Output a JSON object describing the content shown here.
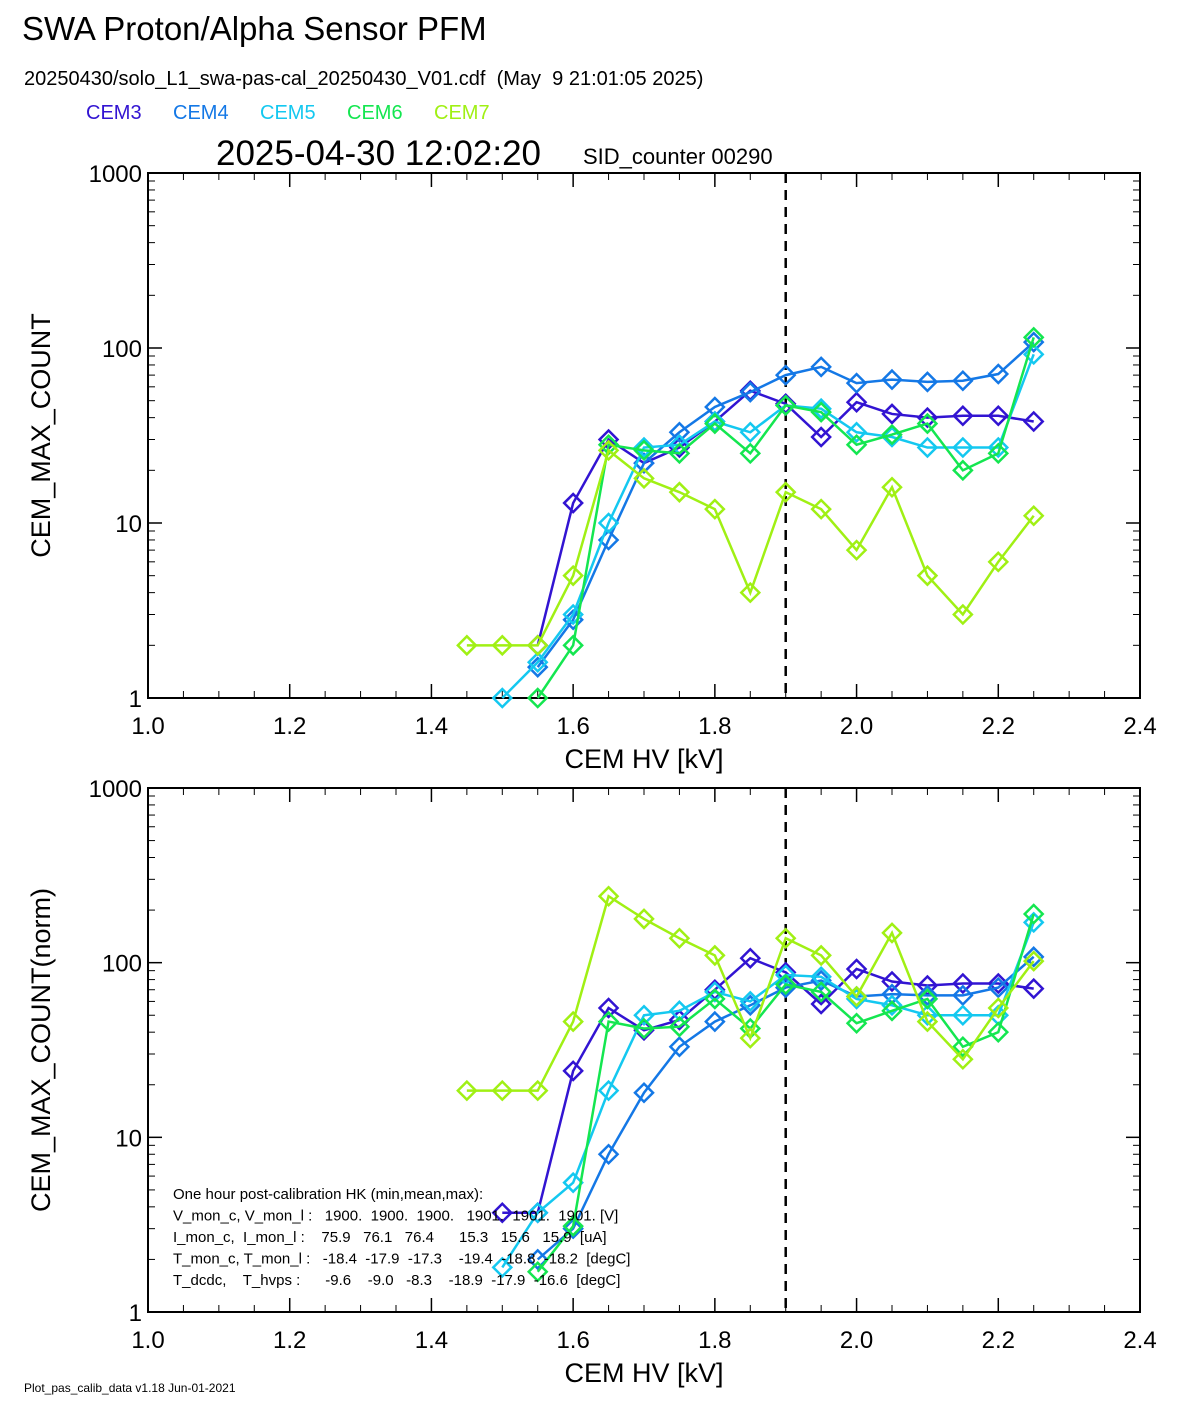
{
  "header": {
    "title": "SWA Proton/Alpha Sensor PFM",
    "subtitle": "20250430/solo_L1_swa-pas-cal_20250430_V01.cdf  (May  9 21:01:05 2025)",
    "timestamp": "2025-04-30 12:02:20",
    "sid": "SID_counter 00290",
    "footer": "Plot_pas_calib_data v1.18 Jun-01-2021"
  },
  "chart_data": [
    {
      "type": "line",
      "x_label": "CEM HV [kV]",
      "y_label": "CEM_MAX_COUNT",
      "log_y": true,
      "marker": "diamond",
      "vline": 1.9,
      "x": [
        1.45,
        1.5,
        1.55,
        1.6,
        1.65,
        1.7,
        1.75,
        1.8,
        1.85,
        1.9,
        1.95,
        2.0,
        2.05,
        2.1,
        2.15,
        2.2,
        2.25
      ],
      "xlim": [
        1.0,
        2.4
      ],
      "xticks": [
        {
          "value": 1.0,
          "label": "1.0"
        },
        {
          "value": 1.2,
          "label": "1.2"
        },
        {
          "value": 1.4,
          "label": "1.4"
        },
        {
          "value": 1.6,
          "label": "1.6"
        },
        {
          "value": 1.8,
          "label": "1.8"
        },
        {
          "value": 2.0,
          "label": "2.0"
        },
        {
          "value": 2.2,
          "label": "2.2"
        },
        {
          "value": 2.4,
          "label": "2.4"
        }
      ],
      "ylim": [
        1,
        1000
      ],
      "yticks": [
        1,
        10,
        100,
        1000
      ],
      "series": [
        {
          "name": "CEM3",
          "color": "#3214d2",
          "values": [
            null,
            null,
            2,
            13,
            30,
            22,
            27,
            38,
            57,
            48,
            31,
            49,
            42,
            40,
            41,
            41,
            38
          ]
        },
        {
          "name": "CEM4",
          "color": "#1478e6",
          "values": [
            null,
            null,
            1.5,
            2.8,
            8,
            22,
            33,
            46,
            56,
            70,
            78,
            63,
            66,
            64,
            65,
            71,
            108
          ]
        },
        {
          "name": "CEM5",
          "color": "#14c8f0",
          "values": [
            null,
            1,
            1.6,
            3,
            10,
            27,
            28,
            38,
            33,
            47,
            45,
            33,
            31,
            27,
            27,
            27,
            92
          ]
        },
        {
          "name": "CEM6",
          "color": "#14e650",
          "values": [
            null,
            null,
            1,
            2,
            28,
            26,
            25,
            37,
            25,
            47,
            43,
            28,
            32,
            37,
            20,
            25,
            115
          ]
        },
        {
          "name": "CEM7",
          "color": "#a0f014",
          "values": [
            2,
            2,
            2,
            5,
            26,
            18,
            15,
            12,
            4,
            15,
            12,
            7,
            16,
            5,
            3,
            6,
            11
          ]
        }
      ]
    },
    {
      "type": "line",
      "x_label": "CEM HV [kV]",
      "y_label": "CEM_MAX_COUNT(norm)",
      "log_y": true,
      "marker": "diamond",
      "vline": 1.9,
      "x": [
        1.45,
        1.5,
        1.55,
        1.6,
        1.65,
        1.7,
        1.75,
        1.8,
        1.85,
        1.9,
        1.95,
        2.0,
        2.05,
        2.1,
        2.15,
        2.2,
        2.25
      ],
      "xlim": [
        1.0,
        2.4
      ],
      "xticks": [
        {
          "value": 1.0,
          "label": "1.0"
        },
        {
          "value": 1.2,
          "label": "1.2"
        },
        {
          "value": 1.4,
          "label": "1.4"
        },
        {
          "value": 1.6,
          "label": "1.6"
        },
        {
          "value": 1.8,
          "label": "1.8"
        },
        {
          "value": 2.0,
          "label": "2.0"
        },
        {
          "value": 2.2,
          "label": "2.2"
        },
        {
          "value": 2.4,
          "label": "2.4"
        }
      ],
      "ylim": [
        1,
        1000
      ],
      "yticks": [
        1,
        10,
        100,
        1000
      ],
      "series": [
        {
          "color": "#3214d2",
          "values": [
            null,
            3.7,
            3.7,
            24,
            55,
            41,
            47,
            70,
            106,
            88,
            58,
            92,
            78,
            74,
            76,
            76,
            71
          ]
        },
        {
          "color": "#1478e6",
          "values": [
            null,
            null,
            2,
            3,
            8,
            18,
            33,
            46,
            57,
            72,
            79,
            64,
            66,
            65,
            65,
            72,
            108
          ]
        },
        {
          "color": "#14c8f0",
          "values": [
            null,
            1.8,
            3.7,
            5.5,
            18.5,
            50,
            53,
            68,
            60,
            85,
            83,
            62,
            57,
            50,
            50,
            50,
            170
          ]
        },
        {
          "color": "#14e650",
          "values": [
            null,
            null,
            1.7,
            3.1,
            46,
            42,
            43,
            62,
            42,
            75,
            68,
            45,
            53,
            62,
            33,
            40,
            190
          ]
        },
        {
          "color": "#a0f014",
          "values": [
            18.5,
            18.5,
            18.5,
            46,
            240,
            178,
            138,
            110,
            37,
            138,
            110,
            64,
            148,
            46,
            28,
            55,
            102
          ]
        }
      ],
      "annotations": [
        "One hour post-calibration HK (min,mean,max):",
        "V_mon_c, V_mon_l :   1900.  1900.  1900.   1901.  1901.  1901. [V]",
        "I_mon_c,  I_mon_l :    75.9   76.1   76.4      15.3   15.6   15.9  [uA]",
        "T_mon_c, T_mon_l :   -18.4  -17.9  -17.3    -19.4  -18.8  -18.2  [degC]",
        "T_dcdc,    T_hvps :      -9.6    -9.0   -8.3    -18.9  -17.9  -16.6  [degC]"
      ]
    }
  ]
}
